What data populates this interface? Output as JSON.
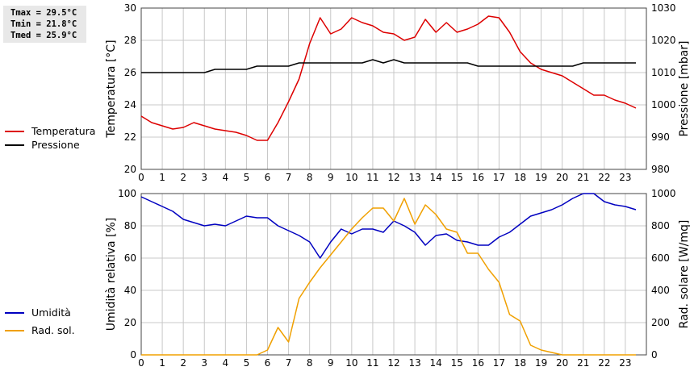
{
  "stats": {
    "tmax": "Tmax = 29.5°C",
    "tmin": "Tmin = 21.8°C",
    "tmed": "Tmed = 25.9°C"
  },
  "colors": {
    "temperature": "#dd0000",
    "pressure": "#000000",
    "humidity": "#0000c0",
    "solar": "#f0a000",
    "grid": "#c8c8c8",
    "frame": "#444444"
  },
  "chart_data": [
    {
      "type": "line",
      "x_ticks": [
        "0",
        "1",
        "2",
        "3",
        "4",
        "5",
        "6",
        "7",
        "8",
        "9",
        "10",
        "11",
        "12",
        "13",
        "14",
        "15",
        "16",
        "17",
        "18",
        "19",
        "20",
        "21",
        "22",
        "23"
      ],
      "xlim": [
        0,
        24
      ],
      "ylabel": "Temperatura [°C]",
      "ylim": [
        20,
        30
      ],
      "y_ticks": [
        "20",
        "22",
        "24",
        "26",
        "28",
        "30"
      ],
      "ylabel_right": "Pressione [mbar]",
      "ylim_right": [
        980,
        1030
      ],
      "y_ticks_right": [
        "980",
        "990",
        "1000",
        "1010",
        "1020",
        "1030"
      ],
      "grid": true,
      "legend": {
        "position": "left",
        "entries": [
          "Temperatura",
          "Pressione"
        ]
      },
      "series": [
        {
          "name": "Temperatura",
          "axis": "left",
          "x": [
            0,
            0.5,
            1,
            1.5,
            2,
            2.5,
            3,
            3.5,
            4,
            4.5,
            5,
            5.5,
            5.75,
            6,
            6.5,
            7,
            7.5,
            8,
            8.5,
            9,
            9.5,
            10,
            10.5,
            11,
            11.5,
            12,
            12.5,
            13,
            13.5,
            14,
            14.5,
            15,
            15.5,
            16,
            16.5,
            17,
            17.5,
            18,
            18.5,
            19,
            19.5,
            20,
            20.5,
            21,
            21.5,
            22,
            22.5,
            23,
            23.5
          ],
          "values": [
            23.3,
            22.9,
            22.7,
            22.5,
            22.6,
            22.9,
            22.7,
            22.5,
            22.4,
            22.3,
            22.1,
            21.8,
            21.8,
            21.8,
            22.9,
            24.2,
            25.6,
            27.8,
            29.4,
            28.4,
            28.7,
            29.4,
            29.1,
            28.9,
            28.5,
            28.4,
            28.0,
            28.2,
            29.3,
            28.5,
            29.1,
            28.5,
            28.7,
            29.0,
            29.5,
            29.4,
            28.5,
            27.3,
            26.6,
            26.2,
            26.0,
            25.8,
            25.4,
            25.0,
            24.6,
            24.6,
            24.3,
            24.1,
            23.8
          ]
        },
        {
          "name": "Pressione",
          "axis": "right",
          "x": [
            0,
            0.5,
            1,
            1.5,
            2,
            2.5,
            3,
            3.5,
            4,
            4.5,
            5,
            5.5,
            6,
            6.5,
            7,
            7.5,
            8,
            8.5,
            9,
            9.5,
            10,
            10.5,
            11,
            11.5,
            12,
            12.5,
            13,
            13.5,
            14,
            14.5,
            15,
            15.5,
            16,
            16.5,
            17,
            17.5,
            18,
            18.5,
            19,
            19.5,
            20,
            20.5,
            21,
            21.5,
            22,
            22.5,
            23,
            23.5
          ],
          "values": [
            1010,
            1010,
            1010,
            1010,
            1010,
            1010,
            1010,
            1011,
            1011,
            1011,
            1011,
            1012,
            1012,
            1012,
            1012,
            1013,
            1013,
            1013,
            1013,
            1013,
            1013,
            1013,
            1014,
            1013,
            1014,
            1013,
            1013,
            1013,
            1013,
            1013,
            1013,
            1013,
            1012,
            1012,
            1012,
            1012,
            1012,
            1012,
            1012,
            1012,
            1012,
            1012,
            1013,
            1013,
            1013,
            1013,
            1013,
            1013
          ]
        }
      ]
    },
    {
      "type": "line",
      "x_ticks": [
        "0",
        "1",
        "2",
        "3",
        "4",
        "5",
        "6",
        "7",
        "8",
        "9",
        "10",
        "11",
        "12",
        "13",
        "14",
        "15",
        "16",
        "17",
        "18",
        "19",
        "20",
        "21",
        "22",
        "23"
      ],
      "xlim": [
        0,
        24
      ],
      "ylabel": "Umidità relativa [%]",
      "ylim": [
        0,
        100
      ],
      "y_ticks": [
        "0",
        "20",
        "40",
        "60",
        "80",
        "100"
      ],
      "ylabel_right": "Rad. solare [W/mq]",
      "ylim_right": [
        0,
        1000
      ],
      "y_ticks_right": [
        "0",
        "200",
        "400",
        "600",
        "800",
        "1000"
      ],
      "grid": true,
      "legend": {
        "position": "left",
        "entries": [
          "Umidità",
          "Rad. sol."
        ]
      },
      "series": [
        {
          "name": "Umidità",
          "axis": "left",
          "x": [
            0,
            0.5,
            1,
            1.5,
            2,
            2.5,
            3,
            3.5,
            4,
            4.5,
            5,
            5.5,
            6,
            6.5,
            7,
            7.5,
            8,
            8.5,
            9,
            9.5,
            10,
            10.5,
            11,
            11.5,
            12,
            12.5,
            13,
            13.5,
            14,
            14.5,
            15,
            15.5,
            16,
            16.5,
            17,
            17.5,
            18,
            18.5,
            19,
            19.5,
            20,
            20.5,
            21,
            21.5,
            22,
            22.5,
            23,
            23.5
          ],
          "values": [
            98,
            95,
            92,
            89,
            84,
            82,
            80,
            81,
            80,
            83,
            86,
            85,
            85,
            80,
            77,
            74,
            70,
            60,
            70,
            78,
            75,
            78,
            78,
            76,
            83,
            80,
            76,
            68,
            74,
            75,
            71,
            70,
            68,
            68,
            73,
            76,
            81,
            86,
            88,
            90,
            93,
            97,
            100,
            100,
            95,
            93,
            92,
            90
          ]
        },
        {
          "name": "Rad. sol.",
          "axis": "right",
          "x": [
            0,
            0.5,
            1,
            1.5,
            2,
            2.5,
            3,
            3.5,
            4,
            4.5,
            5,
            5.5,
            6,
            6.5,
            7,
            7.5,
            8,
            8.5,
            9,
            9.5,
            10,
            10.5,
            11,
            11.5,
            12,
            12.5,
            13,
            13.5,
            14,
            14.5,
            15,
            15.5,
            16,
            16.5,
            17,
            17.5,
            18,
            18.5,
            19,
            19.5,
            20,
            20.5,
            21,
            21.5,
            22,
            22.5,
            23,
            23.5
          ],
          "values": [
            0,
            0,
            0,
            0,
            0,
            0,
            0,
            0,
            0,
            0,
            0,
            0,
            30,
            170,
            80,
            350,
            450,
            540,
            620,
            700,
            780,
            850,
            910,
            910,
            830,
            970,
            810,
            930,
            870,
            780,
            760,
            630,
            630,
            530,
            450,
            250,
            210,
            60,
            30,
            15,
            0,
            0,
            0,
            0,
            0,
            0,
            0,
            0
          ]
        }
      ]
    }
  ]
}
